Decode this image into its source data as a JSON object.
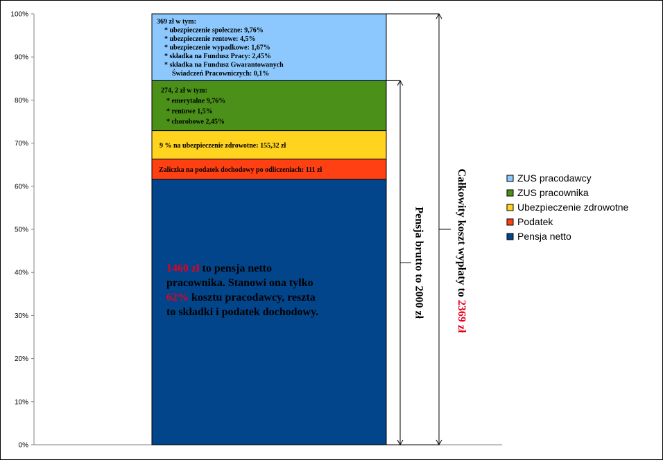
{
  "chart_data": {
    "type": "bar",
    "stacked": true,
    "categories": [
      ""
    ],
    "ylim": [
      0,
      100
    ],
    "y_ticks": [
      "0%",
      "10%",
      "20%",
      "30%",
      "40%",
      "50%",
      "60%",
      "70%",
      "80%",
      "90%",
      "100%"
    ],
    "grid": false,
    "legend_position": "right",
    "series": [
      {
        "name": "Pensja netto",
        "values": [
          61.6
        ],
        "color": "#02458A"
      },
      {
        "name": "Podatek",
        "values": [
          4.7
        ],
        "color": "#FF4013"
      },
      {
        "name": "Ubezpieczenie zdrowotne",
        "values": [
          6.6
        ],
        "color": "#FFD31E"
      },
      {
        "name": "ZUS pracownika",
        "values": [
          11.6
        ],
        "color": "#4B9019"
      },
      {
        "name": "ZUS pracodawcy",
        "values": [
          15.5
        ],
        "color": "#8CC8FD"
      }
    ],
    "legend": [
      {
        "name": "ZUS pracodawcy",
        "color": "#8CC8FD"
      },
      {
        "name": "ZUS pracownika",
        "color": "#4B9019"
      },
      {
        "name": "Ubezpieczenie zdrowotne",
        "color": "#FFD31E"
      },
      {
        "name": "Podatek",
        "color": "#FF4013"
      },
      {
        "name": "Pensja netto",
        "color": "#02458A"
      }
    ],
    "annotations": {
      "zus_employer": [
        "369 zł w tym:",
        "* ubezpieczenie społeczne: 9,76%",
        "* ubezpieczenie rentowe: 4,5%",
        "* ubezpieczenie wypadkowe: 1,67%",
        "* składka na Fundusz Pracy: 2,45%",
        "* składka na Fundusz Gwarantowanych",
        "Świadczeń Pracowniczych: 0,1%"
      ],
      "zus_employee": [
        "274, 2 zł w tym:",
        "* emerytalne 9,76%",
        "* rentowe 1,5%",
        "* chorobowe 2,45%"
      ],
      "health": "9 % na ubezpieczenie zdrowotne: 155,32 zł",
      "tax": "Zaliczka na podatek dochodowy po odliczeniach: 111 zł",
      "net": {
        "line1_highlight": "1460 zł",
        "line1_rest": " to pensja netto",
        "line2": "pracownika. Stanowi ona tylko",
        "line3_highlight": "62%",
        "line3_rest": " kosztu pracodawcy, reszta",
        "line4": "to składki i podatek dochodowy."
      },
      "brutto_label": "Pensja brutto to 2000 zł",
      "total_label": "Całkowity koszt wypłaty to",
      "total_value": "2369 zł",
      "highlight_color": "#E8001C"
    }
  }
}
